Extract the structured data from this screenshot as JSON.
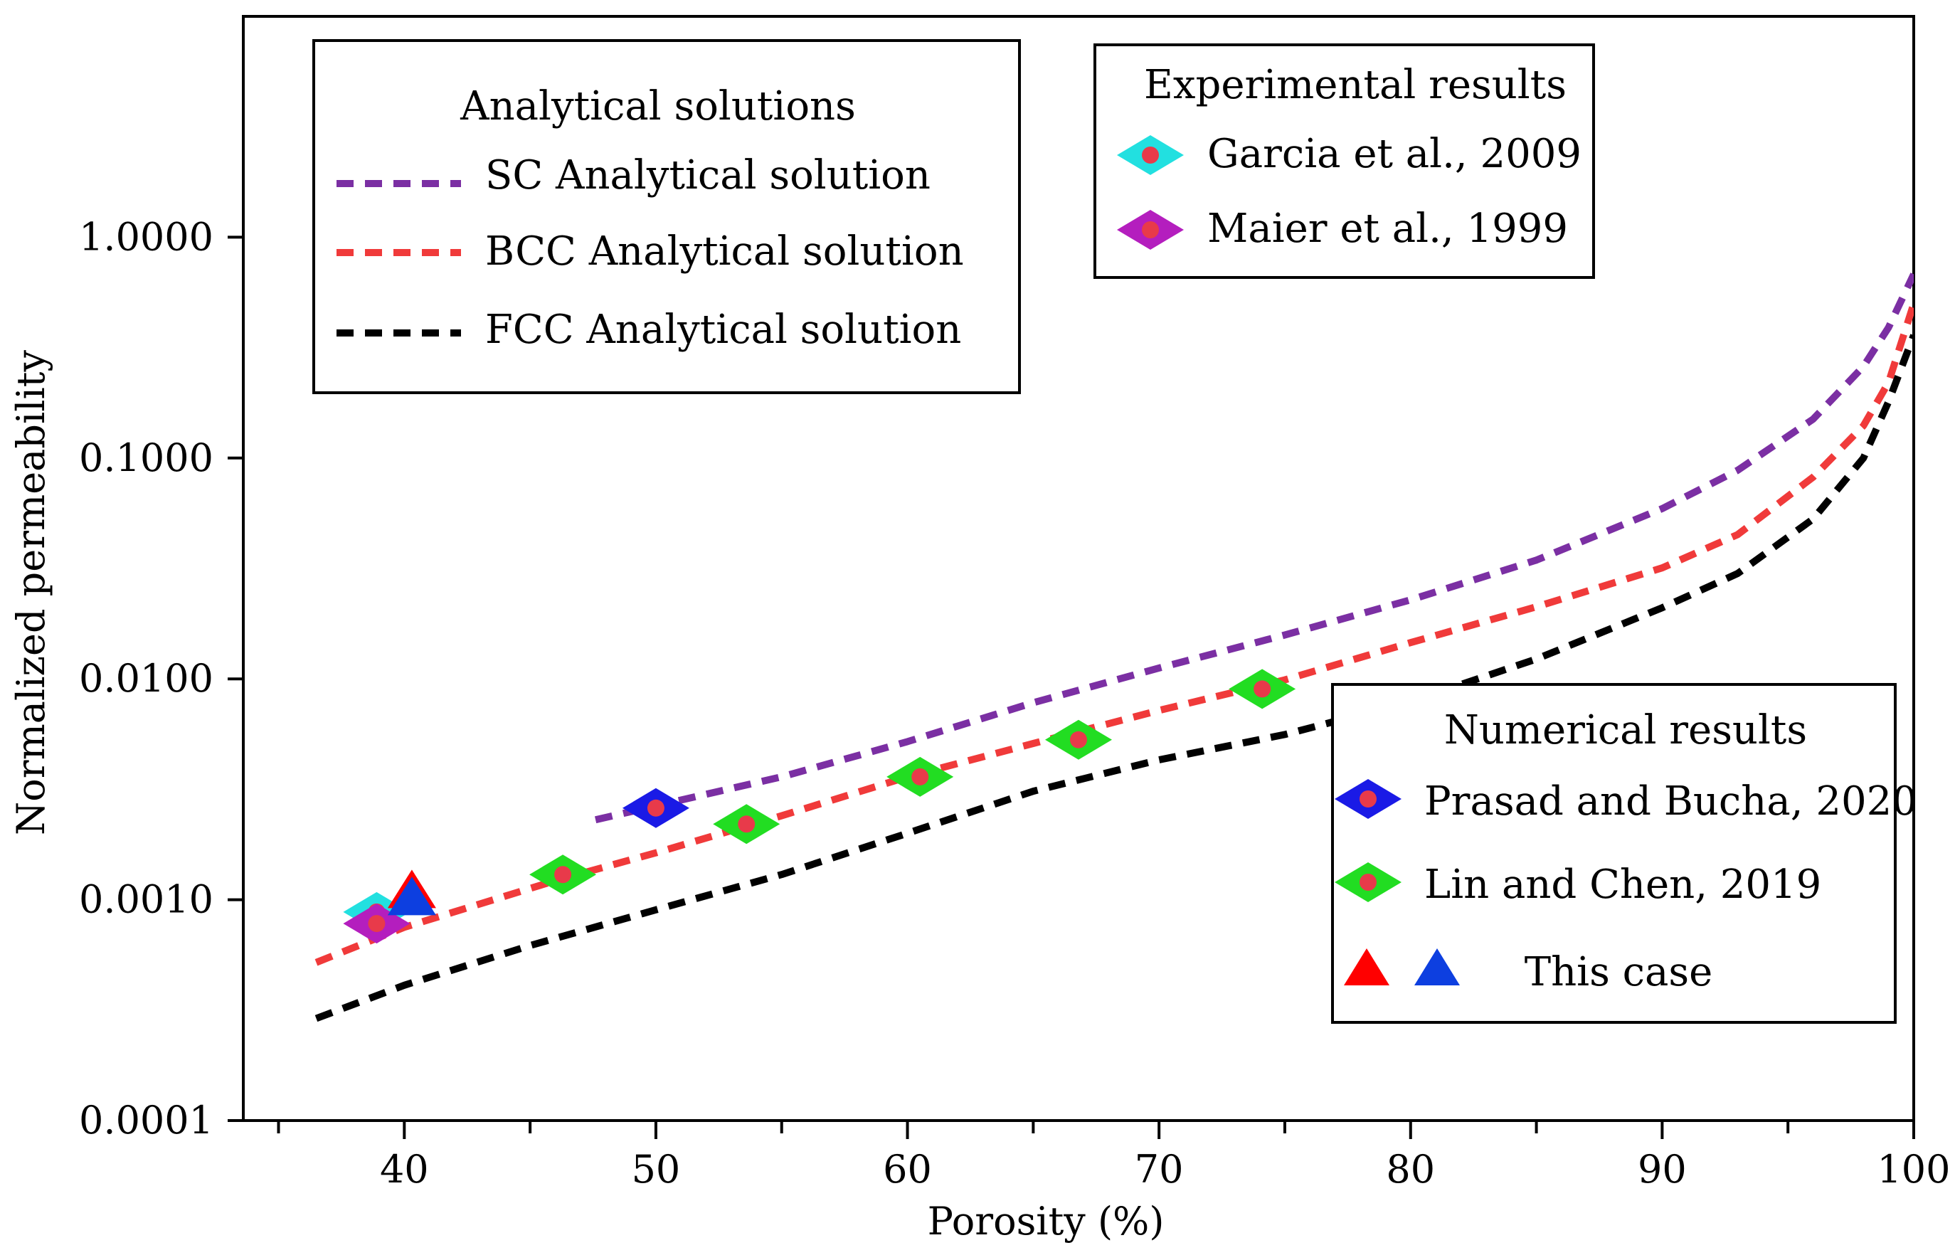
{
  "chart_data": {
    "type": "scatter",
    "title": "",
    "xlabel": "Porosity (%)",
    "ylabel": "Normalized permeability",
    "xlim": [
      33.6,
      100
    ],
    "ylim": [
      0.0001,
      10
    ],
    "yscale": "log",
    "x_ticks": [
      40,
      50,
      60,
      70,
      80,
      90,
      100
    ],
    "x_tick_labels": [
      "40",
      "50",
      "60",
      "70",
      "80",
      "90",
      "100"
    ],
    "y_ticks": [
      0.0001,
      0.001,
      0.01,
      0.1,
      1
    ],
    "y_tick_labels": [
      "0.0001",
      "0.0010",
      "0.0100",
      "0.1000",
      "1.0000"
    ],
    "grid": false,
    "legends": [
      {
        "title": "Analytical solutions",
        "entries": [
          "SC Analytical solution",
          "BCC Analytical solution",
          "FCC Analytical solution"
        ]
      },
      {
        "title": "Experimental results",
        "entries": [
          "Garcia  et al., 2009",
          "Maier et al., 1999"
        ]
      },
      {
        "title": "Numerical results",
        "entries": [
          "Prasad and Bucha, 2020",
          "Lin and Chen, 2019",
          "This case"
        ]
      }
    ],
    "series": [
      {
        "name": "SC Analytical solution",
        "style": "dashed",
        "color": "#7b2fa3",
        "x": [
          47.6,
          55,
          60,
          65,
          70,
          75,
          80,
          85,
          90,
          93,
          96,
          98,
          99,
          100
        ],
        "y": [
          0.0023,
          0.0036,
          0.0052,
          0.0078,
          0.0112,
          0.0158,
          0.0228,
          0.0345,
          0.059,
          0.088,
          0.15,
          0.26,
          0.39,
          0.68
        ]
      },
      {
        "name": "BCC Analytical solution",
        "style": "dashed",
        "color": "#f03a3a",
        "x": [
          36.5,
          40,
          46,
          50,
          55,
          60,
          65,
          70,
          75,
          80,
          85,
          90,
          93,
          96,
          98,
          99,
          100
        ],
        "y": [
          0.00052,
          0.00075,
          0.00122,
          0.00163,
          0.0024,
          0.0036,
          0.0051,
          0.0072,
          0.0099,
          0.0146,
          0.0212,
          0.0318,
          0.045,
          0.082,
          0.14,
          0.22,
          0.5
        ]
      },
      {
        "name": "FCC Analytical solution",
        "style": "dashed",
        "color": "#000000",
        "x": [
          36.5,
          40,
          45,
          50,
          55,
          60,
          65,
          70,
          75,
          80,
          85,
          90,
          93,
          96,
          98,
          99,
          100
        ],
        "y": [
          0.00029,
          0.00041,
          0.00062,
          0.0009,
          0.0013,
          0.002,
          0.0031,
          0.0043,
          0.0056,
          0.0079,
          0.0123,
          0.021,
          0.03,
          0.053,
          0.1,
          0.18,
          0.36
        ]
      },
      {
        "name": "Garcia  et al., 2009",
        "marker": "diamond",
        "color": "#22e0e0",
        "x": [
          38.9
        ],
        "y": [
          0.00088
        ]
      },
      {
        "name": "Maier et al., 1999",
        "marker": "diamond",
        "color": "#b41ebe",
        "x": [
          38.9
        ],
        "y": [
          0.00078
        ]
      },
      {
        "name": "Prasad and Bucha, 2020",
        "marker": "diamond",
        "color": "#1a1ae6",
        "x": [
          50
        ],
        "y": [
          0.0026
        ]
      },
      {
        "name": "Lin and Chen, 2019",
        "marker": "diamond",
        "color": "#22dd22",
        "x": [
          46.3,
          53.6,
          60.5,
          66.8,
          74.1
        ],
        "y": [
          0.0013,
          0.0022,
          0.0036,
          0.0053,
          0.009
        ]
      },
      {
        "name": "This case",
        "marker": "triangle",
        "colors": [
          "#ff0000",
          "#0d3fe0"
        ],
        "x": [
          40.3,
          40.3
        ],
        "y": [
          0.00112,
          0.00104
        ]
      }
    ]
  }
}
